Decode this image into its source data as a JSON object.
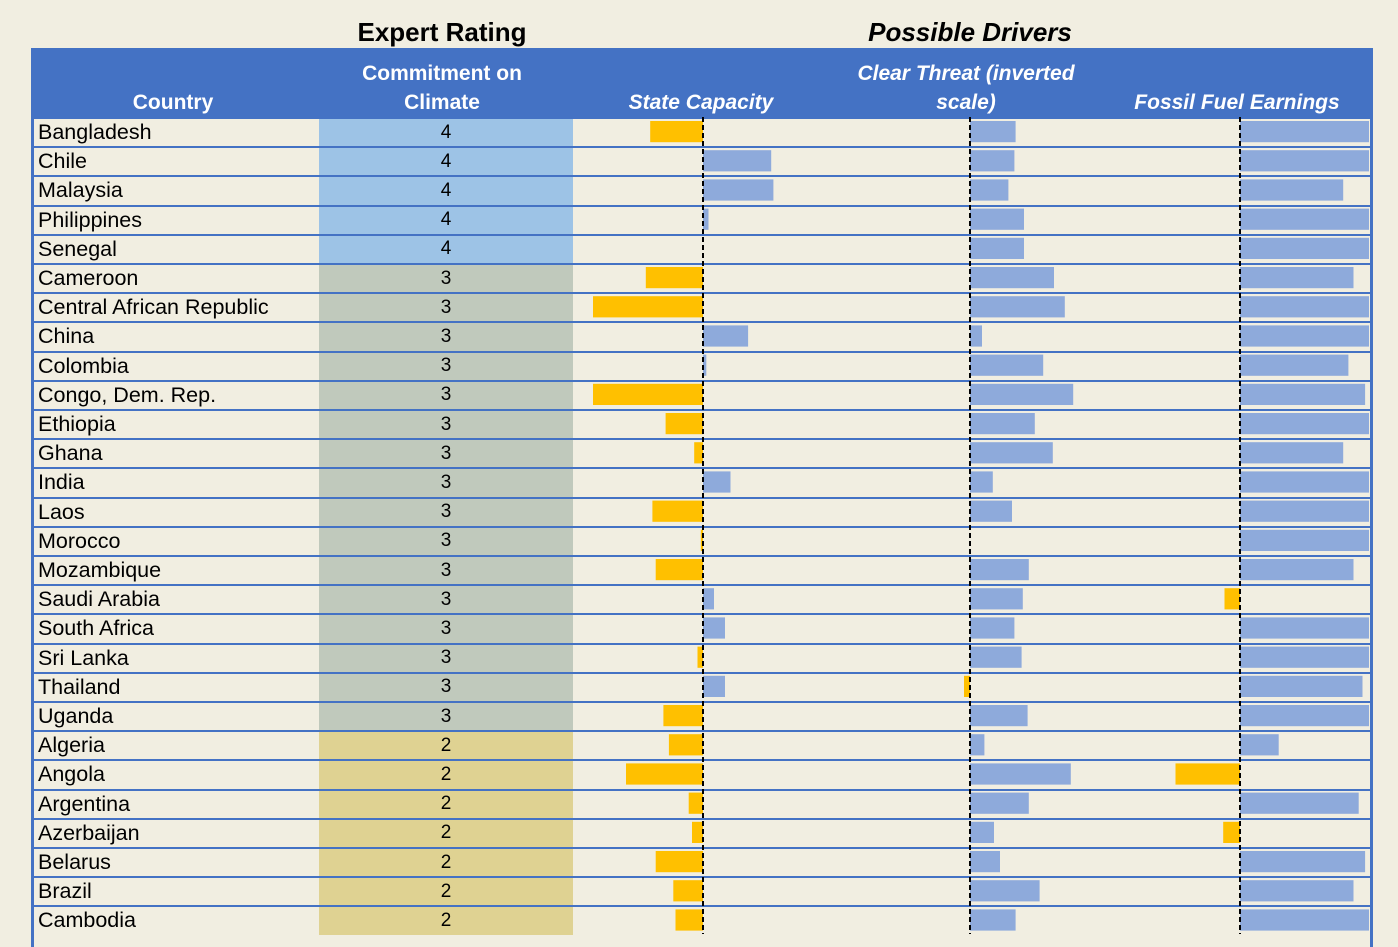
{
  "headers": {
    "expert_rating": "Expert Rating",
    "possible_drivers": "Possible Drivers",
    "country": "Country",
    "commitment": "Commitment on Climate",
    "state_capacity": "State Capacity",
    "clear_threat": "Clear Threat (inverted scale)",
    "fossil_fuel": "Fossil Fuel Earnings"
  },
  "colors": {
    "header_bg": "#4472c4",
    "rating_4": "#9dc3e6",
    "rating_3": "#c0c9bc",
    "rating_2": "#dfd292",
    "positive_bar": "#8eaadb",
    "negative_bar": "#ffc000",
    "background": "#f1eee1"
  },
  "chart_data": {
    "type": "bar",
    "orientation": "horizontal",
    "categories": [
      "Bangladesh",
      "Chile",
      "Malaysia",
      "Philippines",
      "Senegal",
      "Cameroon",
      "Central African Republic",
      "China",
      "Colombia",
      "Congo, Dem. Rep.",
      "Ethiopia",
      "Ghana",
      "India",
      "Laos",
      "Morocco",
      "Mozambique",
      "Saudi Arabia",
      "South Africa",
      "Sri Lanka",
      "Thailand",
      "Uganda",
      "Algeria",
      "Angola",
      "Argentina",
      "Azerbaijan",
      "Belarus",
      "Brazil",
      "Cambodia"
    ],
    "rating": [
      4,
      4,
      4,
      4,
      4,
      3,
      3,
      3,
      3,
      3,
      3,
      3,
      3,
      3,
      3,
      3,
      3,
      3,
      3,
      3,
      3,
      2,
      2,
      2,
      2,
      2,
      2,
      2
    ],
    "series": [
      {
        "name": "State Capacity",
        "values": [
          -0.48,
          0.62,
          0.64,
          0.05,
          0,
          -0.52,
          -1.0,
          0.41,
          0.03,
          -1.0,
          -0.34,
          -0.08,
          0.25,
          -0.46,
          -0.02,
          -0.43,
          0.1,
          0.2,
          -0.05,
          0.2,
          -0.36,
          -0.31,
          -0.7,
          -0.13,
          -0.1,
          -0.43,
          -0.27,
          -0.25
        ]
      },
      {
        "name": "Clear Threat (inverted scale)",
        "values": [
          0.38,
          0.37,
          0.32,
          0.45,
          0.45,
          0.7,
          0.79,
          0.1,
          0.61,
          0.86,
          0.54,
          0.69,
          0.19,
          0.35,
          0,
          0.49,
          0.44,
          0.37,
          0.43,
          -0.05,
          0.48,
          0.12,
          0.84,
          0.49,
          0.2,
          0.25,
          0.58,
          0.38
        ]
      },
      {
        "name": "Fossil Fuel Earnings",
        "values": [
          1.0,
          1.0,
          0.8,
          1.0,
          1.0,
          0.88,
          1.0,
          1.0,
          0.84,
          0.97,
          1.0,
          0.8,
          1.0,
          1.0,
          1.0,
          0.88,
          -0.12,
          1.0,
          1.0,
          0.95,
          1.0,
          0.3,
          -0.5,
          0.92,
          -0.13,
          0.97,
          0.88,
          1.0
        ]
      }
    ],
    "title": "",
    "xlabel": "",
    "ylabel": ""
  }
}
